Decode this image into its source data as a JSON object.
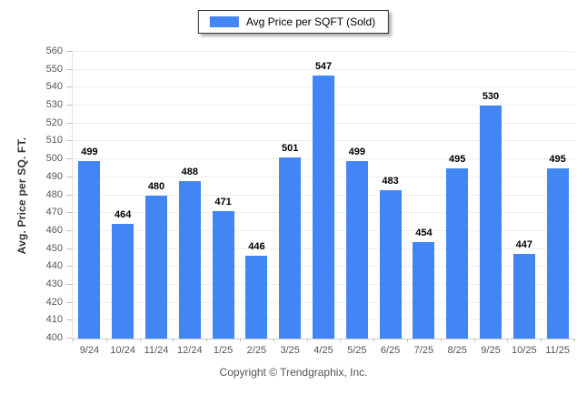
{
  "legend": {
    "label": "Avg Price per SQFT (Sold)",
    "swatch_color": "#4285f4"
  },
  "footer": {
    "copyright": "Copyright © Trendgraphix, Inc."
  },
  "chart_data": {
    "type": "bar",
    "title": "",
    "categories": [
      "9/24",
      "10/24",
      "11/24",
      "12/24",
      "1/25",
      "2/25",
      "3/25",
      "4/25",
      "5/25",
      "6/25",
      "7/25",
      "8/25",
      "9/25",
      "10/25",
      "11/25"
    ],
    "series": [
      {
        "name": "Avg Price per SQFT (Sold)",
        "values": [
          499,
          464,
          480,
          488,
          471,
          446,
          501,
          547,
          499,
          483,
          454,
          495,
          530,
          447,
          495
        ]
      }
    ],
    "xlabel": "",
    "ylabel": "Avg. Price per SQ. FT.",
    "ylim": [
      400,
      560
    ],
    "ytick_step": 10,
    "bar_color": "#4285f4",
    "grid": "horizontal",
    "legend_position": "top-center",
    "value_labels": "above-bars"
  }
}
